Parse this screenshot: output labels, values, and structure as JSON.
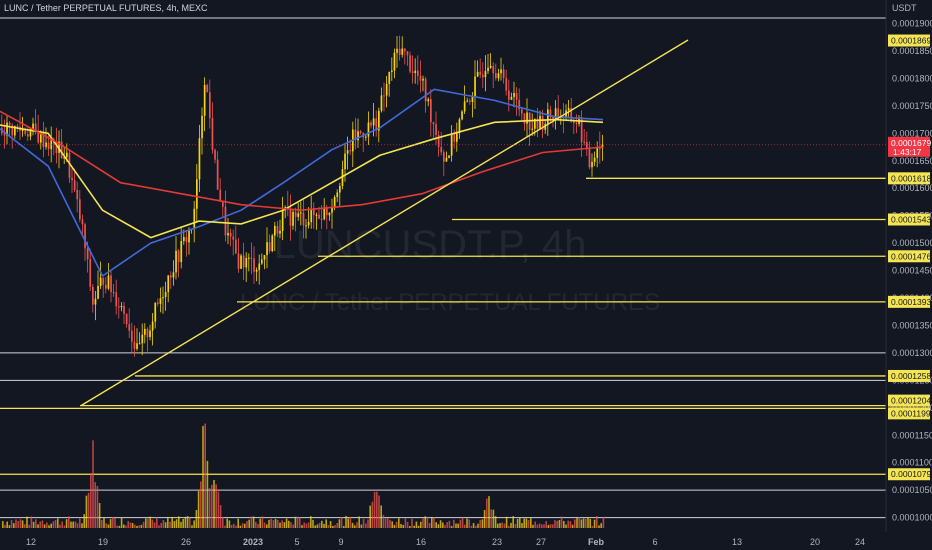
{
  "header": {
    "title": "LUNC / Tether PERPETUAL FUTURES, 4h, MEXC"
  },
  "watermark": {
    "symbol": "LUNCUSDT.P, 4h",
    "name": "LUNC / Tether PERPETUAL FUTURES"
  },
  "axis": {
    "currency": "USDT",
    "price_ticks": [
      "0.0001900",
      "0.0001850",
      "0.0001800",
      "0.0001750",
      "0.0001700",
      "0.0001650",
      "0.0001600",
      "0.0001550",
      "0.0001500",
      "0.0001450",
      "0.0001400",
      "0.0001350",
      "0.0001300",
      "0.0001250",
      "0.0001200",
      "0.0001150",
      "0.0001100",
      "0.0001050",
      "0.0001000"
    ],
    "time_ticks": [
      "12",
      "19",
      "26",
      "2023",
      "5",
      "9",
      "16",
      "23",
      "27",
      "Feb",
      "6",
      "13",
      "20",
      "24"
    ]
  },
  "colors": {
    "background": "#131722",
    "up": "#f5d60a",
    "down": "#ef5350",
    "ma_blue": "#3f6ad8",
    "ma_yellow": "#f5e553",
    "ma_red": "#e53935",
    "trendline": "#f5e553",
    "current_price": "#f23645"
  },
  "chart_data": {
    "type": "candlestick",
    "title": "LUNC / Tether PERPETUAL FUTURES, 4h, MEXC",
    "symbol": "LUNCUSDT.P",
    "timeframe": "4h",
    "exchange": "MEXC",
    "y_unit": "USDT",
    "ylim": [
      9.85e-05,
      0.0001925
    ],
    "grid": false,
    "current_price": {
      "value": "0.0001679",
      "countdown": "1:43:17"
    },
    "series_summary": [
      {
        "date": "Dec 9",
        "price": 0.000171
      },
      {
        "date": "Dec 12",
        "price": 0.0001705
      },
      {
        "date": "Dec 15",
        "price": 0.000166
      },
      {
        "date": "Dec 17",
        "price": 0.000153
      },
      {
        "date": "Dec 18",
        "price": 0.000139
      },
      {
        "date": "Dec 19",
        "price": 0.000144
      },
      {
        "date": "Dec 21",
        "price": 0.000137
      },
      {
        "date": "Dec 22",
        "price": 0.00013
      },
      {
        "date": "Dec 23",
        "price": 0.000134
      },
      {
        "date": "Dec 25",
        "price": 0.000145
      },
      {
        "date": "Dec 27",
        "price": 0.000154
      },
      {
        "date": "Dec 28",
        "price": 0.000181
      },
      {
        "date": "Dec 29",
        "price": 0.000164
      },
      {
        "date": "Dec 30",
        "price": 0.000152
      },
      {
        "date": "Dec 31",
        "price": 0.000147
      },
      {
        "date": "Jan 2",
        "price": 0.000146
      },
      {
        "date": "Jan 4",
        "price": 0.000155
      },
      {
        "date": "Jan 6",
        "price": 0.0001545
      },
      {
        "date": "Jan 8",
        "price": 0.000156
      },
      {
        "date": "Jan 10",
        "price": 0.000169
      },
      {
        "date": "Jan 12",
        "price": 0.000172
      },
      {
        "date": "Jan 14",
        "price": 0.000186
      },
      {
        "date": "Jan 16",
        "price": 0.000179
      },
      {
        "date": "Jan 18",
        "price": 0.000165
      },
      {
        "date": "Jan 20",
        "price": 0.000176
      },
      {
        "date": "Jan 22",
        "price": 0.000184
      },
      {
        "date": "Jan 24",
        "price": 0.000177
      },
      {
        "date": "Jan 26",
        "price": 0.000171
      },
      {
        "date": "Jan 28",
        "price": 0.000174
      },
      {
        "date": "Jan 30",
        "price": 0.000172
      },
      {
        "date": "Jan 31",
        "price": 0.000164
      },
      {
        "date": "Feb 1",
        "price": 0.0001679
      }
    ],
    "moving_averages": [
      {
        "color": "#3f6ad8",
        "points": [
          [
            0,
            0.0001708
          ],
          [
            0.08,
            0.000164
          ],
          [
            0.17,
            0.000144
          ],
          [
            0.25,
            0.00015
          ],
          [
            0.33,
            0.000153
          ],
          [
            0.4,
            0.000156
          ],
          [
            0.47,
            0.000161
          ],
          [
            0.55,
            0.000167
          ],
          [
            0.63,
            0.000171
          ],
          [
            0.72,
            0.000178
          ],
          [
            0.82,
            0.000176
          ],
          [
            0.92,
            0.000173
          ],
          [
            1,
            0.0001725
          ]
        ]
      },
      {
        "color": "#f5e553",
        "points": [
          [
            0,
            0.0001715
          ],
          [
            0.08,
            0.00017
          ],
          [
            0.17,
            0.000156
          ],
          [
            0.25,
            0.000151
          ],
          [
            0.33,
            0.000154
          ],
          [
            0.4,
            0.0001535
          ],
          [
            0.47,
            0.000156
          ],
          [
            0.55,
            0.000161
          ],
          [
            0.63,
            0.000166
          ],
          [
            0.72,
            0.000169
          ],
          [
            0.82,
            0.000172
          ],
          [
            0.92,
            0.0001725
          ],
          [
            1,
            0.000172
          ]
        ]
      },
      {
        "color": "#e53935",
        "points": [
          [
            0,
            0.000174
          ],
          [
            0.1,
            0.000168
          ],
          [
            0.2,
            0.000161
          ],
          [
            0.3,
            0.000159
          ],
          [
            0.4,
            0.000157
          ],
          [
            0.5,
            0.000156
          ],
          [
            0.6,
            0.000157
          ],
          [
            0.7,
            0.000159
          ],
          [
            0.8,
            0.000163
          ],
          [
            0.9,
            0.0001665
          ],
          [
            1,
            0.0001675
          ]
        ]
      }
    ],
    "trendline": {
      "from": {
        "date": "Dec 17",
        "price": 0.0001204
      },
      "to": {
        "date": "Feb 5",
        "price": 0.000187
      }
    },
    "horizontal_levels": [
      {
        "label": "0.0001869",
        "value": 0.0001869,
        "color": "#f5e553"
      },
      {
        "label": "0.0001618",
        "value": 0.0001618,
        "color": "#f5e553"
      },
      {
        "label": "0.0001543",
        "value": 0.0001543,
        "color": "#f5e553"
      },
      {
        "label": "0.0001476",
        "value": 0.0001476,
        "color": "#f5e553"
      },
      {
        "label": "0.0001393",
        "value": 0.0001393,
        "color": "#f5e553"
      },
      {
        "label": "0.0001258",
        "value": 0.0001258,
        "color": "#f5e553"
      },
      {
        "label": "0.0001204",
        "value": 0.0001204,
        "color": "#f5e553"
      },
      {
        "label": "0.0001199",
        "value": 0.0001199,
        "color": "#f5e553"
      },
      {
        "label": "0.0001079",
        "value": 0.0001079,
        "color": "#f5e553"
      }
    ],
    "white_levels": [
      0.000191,
      0.00013,
      0.000125,
      0.000105,
      0.0001
    ],
    "volume_spikes": [
      {
        "date": "Dec 18",
        "rel": 0.8
      },
      {
        "date": "Dec 28",
        "rel": 1.0
      },
      {
        "date": "Dec 29",
        "rel": 0.55
      },
      {
        "date": "Jan 12",
        "rel": 0.5
      },
      {
        "date": "Jan 22",
        "rel": 0.3
      }
    ]
  }
}
